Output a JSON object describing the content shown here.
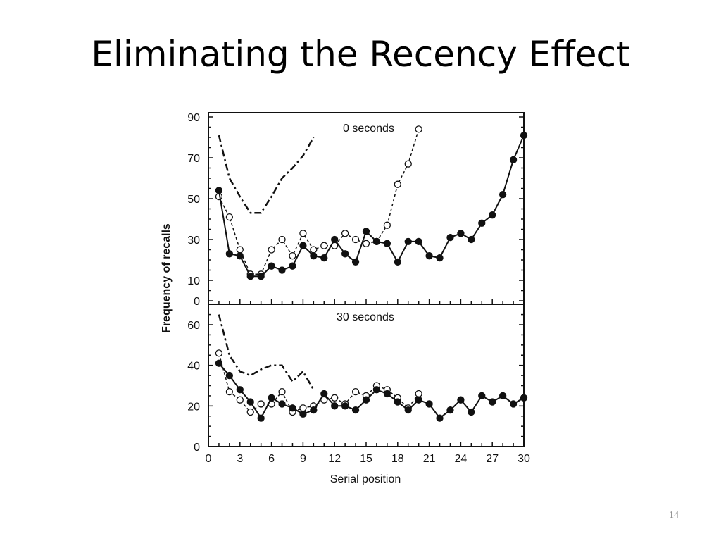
{
  "slide": {
    "title": "Eliminating the Recency Effect",
    "page_number": "14"
  },
  "colors": {
    "ink": "#111111",
    "background": "#ffffff"
  },
  "chart_data": {
    "type": "line",
    "ylabel": "Frequency of recalls",
    "xlabel": "Serial position",
    "xlim": [
      0,
      30
    ],
    "xticks": [
      "0",
      "3",
      "6",
      "9",
      "12",
      "15",
      "18",
      "21",
      "24",
      "27",
      "30"
    ],
    "panels": [
      {
        "name": "top",
        "title": "0 seconds",
        "ylim": [
          0,
          90
        ],
        "yticks": [
          "0",
          "10",
          "30",
          "50",
          "70",
          "90"
        ],
        "series": [
          {
            "style": "dash-dot",
            "x": [
              1,
              2,
              3,
              4,
              5,
              6,
              7,
              8,
              9,
              10
            ],
            "y": [
              81,
              60,
              51,
              43,
              43,
              51,
              60,
              65,
              71,
              80
            ]
          },
          {
            "style": "dashed-open-circles",
            "x": [
              1,
              2,
              3,
              4,
              5,
              6,
              7,
              8,
              9,
              10,
              11,
              12,
              13,
              14,
              15,
              16,
              17,
              18,
              19,
              20
            ],
            "y": [
              51,
              41,
              25,
              13,
              13,
              25,
              30,
              22,
              33,
              25,
              27,
              27,
              33,
              30,
              28,
              29,
              37,
              57,
              67,
              84
            ]
          },
          {
            "style": "solid-filled-circles",
            "x": [
              1,
              2,
              3,
              4,
              5,
              6,
              7,
              8,
              9,
              10,
              11,
              12,
              13,
              14,
              15,
              16,
              17,
              18,
              19,
              20,
              21,
              22,
              23,
              24,
              25,
              26,
              27,
              28,
              29,
              30
            ],
            "y": [
              54,
              23,
              22,
              12,
              12,
              17,
              15,
              17,
              27,
              22,
              21,
              30,
              23,
              19,
              34,
              29,
              28,
              19,
              29,
              29,
              22,
              21,
              31,
              33,
              30,
              38,
              42,
              52,
              69,
              81
            ]
          }
        ]
      },
      {
        "name": "bottom",
        "title": "30 seconds",
        "ylim": [
          0,
          70
        ],
        "yticks": [
          "0",
          "20",
          "40",
          "60"
        ],
        "series": [
          {
            "style": "dash-dot",
            "x": [
              1,
              2,
              3,
              4,
              5,
              6,
              7,
              8,
              9,
              10
            ],
            "y": [
              65,
              45,
              37,
              35,
              38,
              40,
              40,
              32,
              37,
              28
            ]
          },
          {
            "style": "dashed-open-circles",
            "x": [
              1,
              2,
              3,
              4,
              5,
              6,
              7,
              8,
              9,
              10,
              11,
              12,
              13,
              14,
              15,
              16,
              17,
              18,
              19,
              20
            ],
            "y": [
              46,
              27,
              23,
              17,
              21,
              21,
              27,
              17,
              19,
              20,
              23,
              24,
              21,
              27,
              25,
              30,
              28,
              24,
              19,
              26
            ]
          },
          {
            "style": "solid-filled-circles",
            "x": [
              1,
              2,
              3,
              4,
              5,
              6,
              7,
              8,
              9,
              10,
              11,
              12,
              13,
              14,
              15,
              16,
              17,
              18,
              19,
              20,
              21,
              22,
              23,
              24,
              25,
              26,
              27,
              28,
              29,
              30
            ],
            "y": [
              41,
              35,
              28,
              22,
              14,
              24,
              21,
              19,
              16,
              18,
              26,
              20,
              20,
              18,
              23,
              28,
              26,
              22,
              18,
              23,
              21,
              14,
              18,
              23,
              17,
              25,
              22,
              25,
              21,
              24
            ]
          }
        ]
      }
    ]
  }
}
